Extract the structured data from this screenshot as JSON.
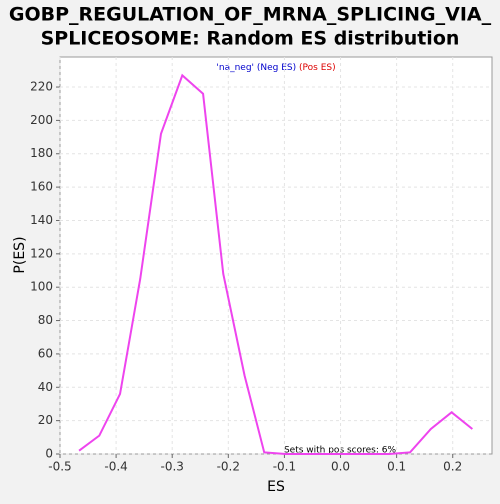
{
  "chart_data": {
    "type": "line",
    "title": [
      "GOBP_REGULATION_OF_MRNA_SPLICING_VIA_",
      "SPLICEOSOME: Random ES distribution"
    ],
    "legend": [
      {
        "text": "'na_neg' (Neg ES)",
        "color": "#0000cc"
      },
      {
        "text": "(Pos ES)",
        "color": "#dd0000"
      }
    ],
    "annotation": "Sets with pos scores: 6%",
    "xlabel": "ES",
    "ylabel": "P(ES)",
    "x": [
      -0.466,
      -0.43,
      -0.393,
      -0.357,
      -0.32,
      -0.282,
      -0.245,
      -0.209,
      -0.171,
      -0.136,
      -0.098,
      -0.061,
      -0.024,
      0.013,
      0.05,
      0.087,
      0.124,
      0.161,
      0.198,
      0.235
    ],
    "series": [
      {
        "name": "P(ES)",
        "color": "#ee44ee",
        "values": [
          2,
          11,
          36,
          105,
          192,
          227,
          216,
          108,
          47,
          1,
          0,
          0,
          0,
          0,
          0,
          0,
          1,
          15,
          25,
          15
        ]
      }
    ],
    "xlim": [
      -0.5,
      0.27
    ],
    "ylim": [
      0,
      238
    ],
    "xticks": [
      -0.5,
      -0.4,
      -0.3,
      -0.2,
      -0.1,
      {
        "value": 0,
        "label": "0.0"
      },
      0.1,
      0.2
    ],
    "yticks": [
      0,
      20,
      40,
      60,
      80,
      100,
      120,
      140,
      160,
      180,
      200,
      220
    ],
    "grid": true
  }
}
